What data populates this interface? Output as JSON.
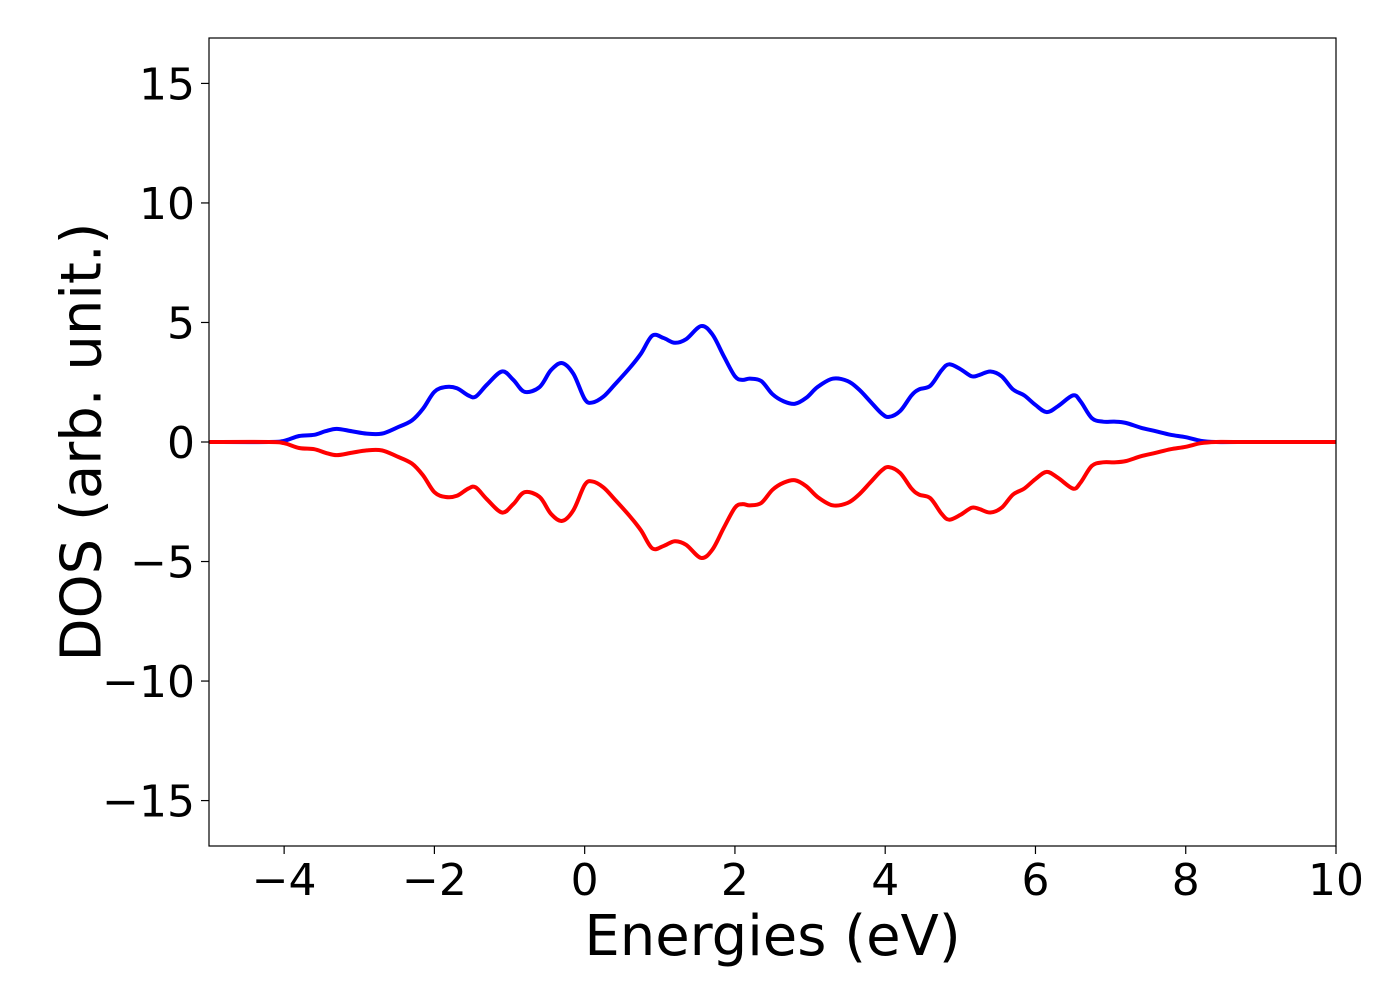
{
  "chart_data": {
    "type": "line",
    "title": "",
    "xlabel": "Energies (eV)",
    "ylabel": "DOS (arb. unit.)",
    "xlim": [
      -5,
      10
    ],
    "ylim": [
      -16.9,
      16.9
    ],
    "xticks": [
      -4,
      -2,
      0,
      2,
      4,
      6,
      8,
      10
    ],
    "yticks": [
      -15,
      -10,
      -5,
      0,
      5,
      10,
      15
    ],
    "xtick_labels": [
      "−4",
      "−2",
      "0",
      "2",
      "4",
      "6",
      "8",
      "10"
    ],
    "ytick_labels": [
      "−15",
      "−10",
      "−5",
      "0",
      "5",
      "10",
      "15"
    ],
    "grid": false,
    "legend": "none",
    "colors": {
      "spin_up": "#0000ff",
      "spin_down": "#ff0000"
    },
    "series": [
      {
        "color": "#0000ff",
        "x": [
          -5.0,
          -4.2,
          -4.0,
          -3.8,
          -3.6,
          -3.45,
          -3.3,
          -3.1,
          -2.9,
          -2.7,
          -2.5,
          -2.3,
          -2.15,
          -2.0,
          -1.85,
          -1.7,
          -1.55,
          -1.45,
          -1.3,
          -1.1,
          -0.95,
          -0.8,
          -0.6,
          -0.45,
          -0.3,
          -0.15,
          0.0,
          0.1,
          0.25,
          0.4,
          0.6,
          0.75,
          0.9,
          1.05,
          1.2,
          1.35,
          1.55,
          1.7,
          1.85,
          2.0,
          2.1,
          2.2,
          2.35,
          2.5,
          2.65,
          2.8,
          2.95,
          3.1,
          3.3,
          3.5,
          3.65,
          3.8,
          3.95,
          4.05,
          4.2,
          4.35,
          4.45,
          4.6,
          4.75,
          4.85,
          5.0,
          5.15,
          5.25,
          5.4,
          5.55,
          5.7,
          5.85,
          6.0,
          6.15,
          6.3,
          6.5,
          6.6,
          6.75,
          6.9,
          7.05,
          7.2,
          7.4,
          7.6,
          7.8,
          8.0,
          8.2,
          8.4,
          8.7,
          10.0
        ],
        "y": [
          0.0,
          0.0,
          0.05,
          0.25,
          0.3,
          0.45,
          0.55,
          0.45,
          0.35,
          0.35,
          0.6,
          0.9,
          1.4,
          2.1,
          2.3,
          2.25,
          1.95,
          1.9,
          2.4,
          2.95,
          2.6,
          2.1,
          2.3,
          3.0,
          3.3,
          2.85,
          1.8,
          1.65,
          1.9,
          2.4,
          3.1,
          3.7,
          4.45,
          4.35,
          4.15,
          4.3,
          4.85,
          4.5,
          3.6,
          2.75,
          2.6,
          2.65,
          2.55,
          2.0,
          1.7,
          1.6,
          1.85,
          2.3,
          2.65,
          2.55,
          2.2,
          1.7,
          1.2,
          1.05,
          1.3,
          1.95,
          2.2,
          2.35,
          3.0,
          3.25,
          3.05,
          2.75,
          2.8,
          2.95,
          2.75,
          2.2,
          1.95,
          1.55,
          1.25,
          1.5,
          1.95,
          1.7,
          1.0,
          0.85,
          0.85,
          0.8,
          0.6,
          0.45,
          0.3,
          0.2,
          0.05,
          0.0,
          0.0,
          0.0
        ]
      },
      {
        "color": "#ff0000",
        "x": [
          -5.0,
          -4.2,
          -4.0,
          -3.8,
          -3.6,
          -3.45,
          -3.3,
          -3.1,
          -2.9,
          -2.7,
          -2.5,
          -2.3,
          -2.15,
          -2.0,
          -1.85,
          -1.7,
          -1.55,
          -1.45,
          -1.3,
          -1.1,
          -0.95,
          -0.8,
          -0.6,
          -0.45,
          -0.3,
          -0.15,
          0.0,
          0.1,
          0.25,
          0.4,
          0.6,
          0.75,
          0.9,
          1.05,
          1.2,
          1.35,
          1.55,
          1.7,
          1.85,
          2.0,
          2.1,
          2.2,
          2.35,
          2.5,
          2.65,
          2.8,
          2.95,
          3.1,
          3.3,
          3.5,
          3.65,
          3.8,
          3.95,
          4.05,
          4.2,
          4.35,
          4.45,
          4.6,
          4.75,
          4.85,
          5.0,
          5.15,
          5.25,
          5.4,
          5.55,
          5.7,
          5.85,
          6.0,
          6.15,
          6.3,
          6.5,
          6.6,
          6.75,
          6.9,
          7.05,
          7.2,
          7.4,
          7.6,
          7.8,
          8.0,
          8.2,
          8.4,
          8.7,
          10.0
        ],
        "y": [
          0.0,
          0.0,
          -0.05,
          -0.25,
          -0.3,
          -0.45,
          -0.55,
          -0.45,
          -0.35,
          -0.35,
          -0.6,
          -0.9,
          -1.4,
          -2.1,
          -2.3,
          -2.25,
          -1.95,
          -1.9,
          -2.4,
          -2.95,
          -2.6,
          -2.1,
          -2.3,
          -3.0,
          -3.3,
          -2.85,
          -1.8,
          -1.65,
          -1.9,
          -2.4,
          -3.1,
          -3.7,
          -4.45,
          -4.35,
          -4.15,
          -4.3,
          -4.85,
          -4.5,
          -3.6,
          -2.75,
          -2.6,
          -2.65,
          -2.55,
          -2.0,
          -1.7,
          -1.6,
          -1.85,
          -2.3,
          -2.65,
          -2.55,
          -2.2,
          -1.7,
          -1.2,
          -1.05,
          -1.3,
          -1.95,
          -2.2,
          -2.35,
          -3.0,
          -3.25,
          -3.05,
          -2.75,
          -2.8,
          -2.95,
          -2.75,
          -2.2,
          -1.95,
          -1.55,
          -1.25,
          -1.5,
          -1.95,
          -1.7,
          -1.0,
          -0.85,
          -0.85,
          -0.8,
          -0.6,
          -0.45,
          -0.3,
          -0.2,
          -0.05,
          0.0,
          0.0,
          0.0
        ]
      }
    ]
  }
}
